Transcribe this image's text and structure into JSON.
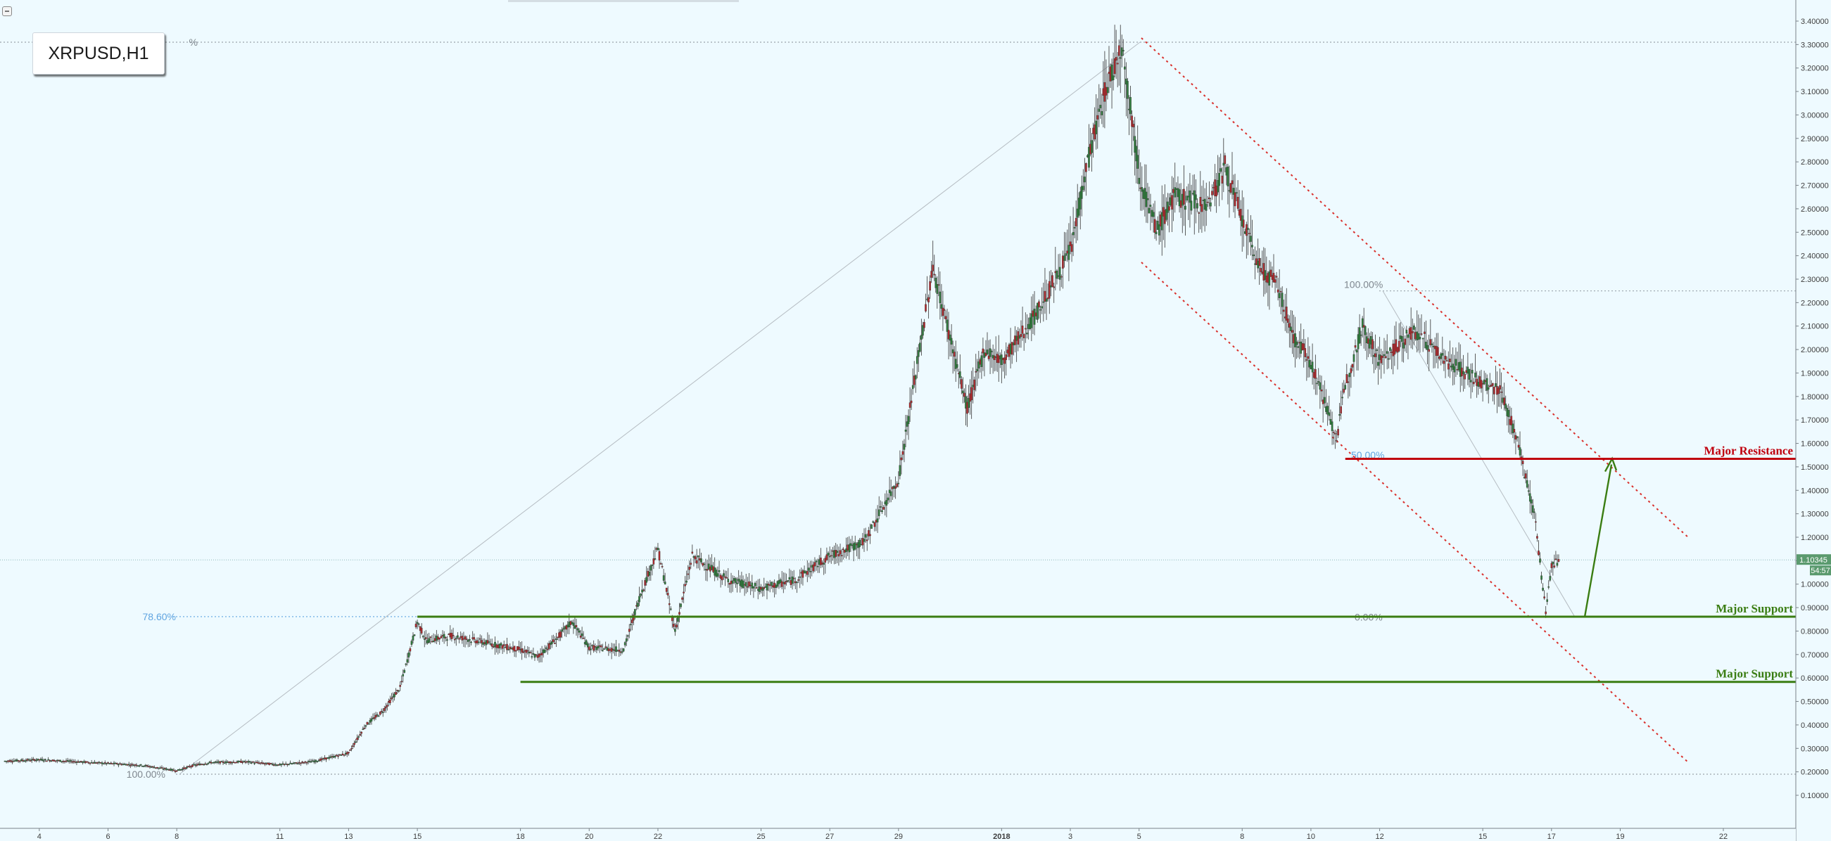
{
  "symbol": "XRPUSD,H1",
  "chart_data": {
    "type": "candlestick",
    "symbol": "XRPUSD",
    "timeframe": "H1",
    "ylim": [
      0.1,
      3.4
    ],
    "y_ticks": [
      "3.40000",
      "3.30000",
      "3.20000",
      "3.10000",
      "3.00000",
      "2.90000",
      "2.80000",
      "2.70000",
      "2.60000",
      "2.50000",
      "2.40000",
      "2.30000",
      "2.20000",
      "2.10000",
      "2.00000",
      "1.90000",
      "1.80000",
      "1.70000",
      "1.60000",
      "1.50000",
      "1.40000",
      "1.30000",
      "1.20000",
      "1.10000",
      "1.00000",
      "0.90000",
      "0.80000",
      "0.70000",
      "0.60000",
      "0.50000",
      "0.40000",
      "0.30000",
      "0.20000",
      "0.10000"
    ],
    "x_ticks": [
      "4",
      "6",
      "8",
      "11",
      "13",
      "15",
      "18",
      "20",
      "22",
      "25",
      "27",
      "29",
      "2018",
      "3",
      "5",
      "8",
      "10",
      "12",
      "15",
      "17",
      "19",
      "22"
    ],
    "x_range": [
      "Dec 3 2017",
      "Jan 23 2018"
    ],
    "levels": [
      {
        "name": "Major Resistance",
        "value": 1.53414,
        "label": "1.53414",
        "color": "#c0000e",
        "start": "Jan 11 2018"
      },
      {
        "name": "Major Support",
        "value": 0.86147,
        "label": "0.86147",
        "color": "#3a7d12",
        "start": "Dec 15 2017"
      },
      {
        "name": "Major Support",
        "value": 0.58346,
        "label": "0.58346",
        "color": "#3a7d12",
        "start": "Dec 18 2017"
      }
    ],
    "current_price": {
      "label": "1.10345",
      "value": 1.10345
    },
    "countdown": "54:57",
    "fib_left": [
      {
        "label": "78.60%",
        "value": 0.86147
      },
      {
        "label": "100.00%",
        "value": 0.19
      },
      {
        "label": "%",
        "value": 3.31
      }
    ],
    "fib_right": [
      {
        "label": "100.00%",
        "value": 2.25
      },
      {
        "label": "50.00%",
        "value": 1.55
      },
      {
        "label": "0.00%",
        "value": 0.86
      }
    ],
    "price_path": [
      [
        "Dec 3 2017",
        0.246
      ],
      [
        "Dec 4 2017",
        0.252
      ],
      [
        "Dec 5 2017",
        0.244
      ],
      [
        "Dec 6 2017",
        0.236
      ],
      [
        "Dec 7 2017",
        0.228
      ],
      [
        "Dec 8 2017",
        0.205
      ],
      [
        "Dec 8 2017 12:00",
        0.228
      ],
      [
        "Dec 9 2017",
        0.24
      ],
      [
        "Dec 10 2017",
        0.243
      ],
      [
        "Dec 11 2017",
        0.23
      ],
      [
        "Dec 12 2017",
        0.245
      ],
      [
        "Dec 13 2017",
        0.28
      ],
      [
        "Dec 13 2017 12:00",
        0.4
      ],
      [
        "Dec 14 2017",
        0.46
      ],
      [
        "Dec 14 2017 12:00",
        0.56
      ],
      [
        "Dec 15 2017",
        0.84
      ],
      [
        "Dec 15 2017 06:00",
        0.76
      ],
      [
        "Dec 16 2017",
        0.78
      ],
      [
        "Dec 17 2017",
        0.75
      ],
      [
        "Dec 18 2017",
        0.72
      ],
      [
        "Dec 18 2017 12:00",
        0.69
      ],
      [
        "Dec 19 2017",
        0.76
      ],
      [
        "Dec 19 2017 12:00",
        0.84
      ],
      [
        "Dec 20 2017",
        0.73
      ],
      [
        "Dec 21 2017",
        0.72
      ],
      [
        "Dec 21 2017 12:00",
        0.96
      ],
      [
        "Dec 22 2017",
        1.15
      ],
      [
        "Dec 22 2017 12:00",
        0.8
      ],
      [
        "Dec 23 2017",
        1.12
      ],
      [
        "Dec 24 2017",
        1.02
      ],
      [
        "Dec 25 2017",
        0.98
      ],
      [
        "Dec 26 2017",
        1.02
      ],
      [
        "Dec 27 2017",
        1.12
      ],
      [
        "Dec 28 2017",
        1.18
      ],
      [
        "Dec 29 2017",
        1.45
      ],
      [
        "Dec 29 2017 12:00",
        1.9
      ],
      [
        "Dec 30 2017",
        2.35
      ],
      [
        "Dec 30 2017 12:00",
        2.05
      ],
      [
        "Dec 31 2017",
        1.75
      ],
      [
        "Dec 31 2017 12:00",
        2.0
      ],
      [
        "Jan 1 2018",
        1.95
      ],
      [
        "Jan 2 2018",
        2.15
      ],
      [
        "Jan 3 2018",
        2.42
      ],
      [
        "Jan 3 2018 12:00",
        2.8
      ],
      [
        "Jan 4 2018",
        3.1
      ],
      [
        "Jan 4 2018 12:00",
        3.3
      ],
      [
        "Jan 5 2018",
        2.75
      ],
      [
        "Jan 5 2018 12:00",
        2.5
      ],
      [
        "Jan 6 2018",
        2.65
      ],
      [
        "Jan 7 2018",
        2.62
      ],
      [
        "Jan 7 2018 12:00",
        2.78
      ],
      [
        "Jan 8 2018",
        2.55
      ],
      [
        "Jan 8 2018 12:00",
        2.35
      ],
      [
        "Jan 9 2018",
        2.28
      ],
      [
        "Jan 9 2018 12:00",
        2.05
      ],
      [
        "Jan 10 2018",
        1.95
      ],
      [
        "Jan 10 2018 18:00",
        1.62
      ],
      [
        "Jan 11 2018",
        1.85
      ],
      [
        "Jan 11 2018 12:00",
        2.1
      ],
      [
        "Jan 12 2018",
        1.95
      ],
      [
        "Jan 13 2018",
        2.08
      ],
      [
        "Jan 14 2018",
        1.95
      ],
      [
        "Jan 15 2018",
        1.85
      ],
      [
        "Jan 15 2018 12:00",
        1.83
      ],
      [
        "Jan 16 2018",
        1.62
      ],
      [
        "Jan 16 2018 06:00",
        1.45
      ],
      [
        "Jan 16 2018 12:00",
        1.3
      ],
      [
        "Jan 16 2018 20:00",
        0.88
      ],
      [
        "Jan 17 2018",
        1.08
      ],
      [
        "Jan 17 2018 06:00",
        1.1
      ]
    ]
  }
}
